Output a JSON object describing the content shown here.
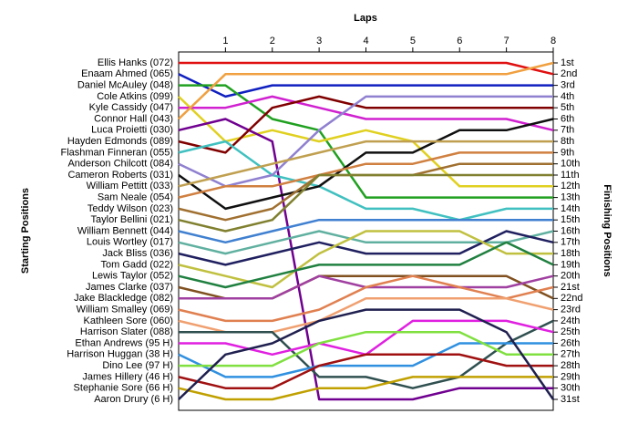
{
  "chart_data": {
    "type": "line",
    "title": "Laps",
    "ylabel": "Starting Positions",
    "y2label": "Finishing Positions",
    "x": [
      0,
      1,
      2,
      3,
      4,
      5,
      6,
      7,
      8
    ],
    "xlim": [
      0,
      8
    ],
    "xticks": [
      1,
      2,
      3,
      4,
      5,
      6,
      7,
      8
    ],
    "ylim": [
      1,
      31
    ],
    "y_inverted": true,
    "y2ticks": [
      {
        "value": 1,
        "label": "1st"
      },
      {
        "value": 2,
        "label": "2nd"
      },
      {
        "value": 3,
        "label": "3rd"
      },
      {
        "value": 4,
        "label": "4th"
      },
      {
        "value": 5,
        "label": "5th"
      },
      {
        "value": 6,
        "label": "6th"
      },
      {
        "value": 7,
        "label": "7th"
      },
      {
        "value": 8,
        "label": "8th"
      },
      {
        "value": 9,
        "label": "9th"
      },
      {
        "value": 10,
        "label": "10th"
      },
      {
        "value": 11,
        "label": "11th"
      },
      {
        "value": 12,
        "label": "12th"
      },
      {
        "value": 13,
        "label": "13th"
      },
      {
        "value": 14,
        "label": "14th"
      },
      {
        "value": 15,
        "label": "15th"
      },
      {
        "value": 16,
        "label": "16th"
      },
      {
        "value": 17,
        "label": "17th"
      },
      {
        "value": 18,
        "label": "18th"
      },
      {
        "value": 19,
        "label": "19th"
      },
      {
        "value": 20,
        "label": "20th"
      },
      {
        "value": 21,
        "label": "21st"
      },
      {
        "value": 22,
        "label": "22nd"
      },
      {
        "value": 23,
        "label": "23rd"
      },
      {
        "value": 24,
        "label": "24th"
      },
      {
        "value": 25,
        "label": "25th"
      },
      {
        "value": 26,
        "label": "26th"
      },
      {
        "value": 27,
        "label": "27th"
      },
      {
        "value": 28,
        "label": "28th"
      },
      {
        "value": 29,
        "label": "29th"
      },
      {
        "value": 30,
        "label": "30th"
      },
      {
        "value": 31,
        "label": "31st"
      }
    ],
    "series": [
      {
        "name": "Ellis Hanks (072)",
        "color": "#e01010",
        "values": [
          1,
          1,
          1,
          1,
          1,
          1,
          1,
          1,
          2
        ]
      },
      {
        "name": "Enaam Ahmed (065)",
        "color": "#1020c0",
        "values": [
          2,
          4,
          3,
          3,
          3,
          3,
          3,
          3,
          3
        ]
      },
      {
        "name": "Daniel McAuley (048)",
        "color": "#20a020",
        "values": [
          3,
          3,
          6,
          7,
          13,
          13,
          13,
          13,
          13
        ]
      },
      {
        "name": "Cole Atkins (099)",
        "color": "#e0d020",
        "values": [
          4,
          8,
          7,
          8,
          7,
          8,
          12,
          12,
          12
        ]
      },
      {
        "name": "Kyle Cassidy (047)",
        "color": "#d020d0",
        "values": [
          5,
          5,
          4,
          5,
          6,
          6,
          6,
          6,
          7
        ]
      },
      {
        "name": "Connor Hall (043)",
        "color": "#f0a040",
        "values": [
          6,
          2,
          2,
          2,
          2,
          2,
          2,
          2,
          1
        ]
      },
      {
        "name": "Luca Proietti (030)",
        "color": "#700090",
        "values": [
          7,
          6,
          8,
          31,
          31,
          31,
          30,
          30,
          30
        ]
      },
      {
        "name": "Hayden Edmonds (089)",
        "color": "#800000",
        "values": [
          8,
          9,
          5,
          4,
          5,
          5,
          5,
          5,
          5
        ]
      },
      {
        "name": "Flashman Finneran (055)",
        "color": "#40c0c0",
        "values": [
          9,
          8,
          11,
          12,
          14,
          14,
          15,
          14,
          14
        ]
      },
      {
        "name": "Anderson Chilcott (084)",
        "color": "#9080d0",
        "values": [
          10,
          12,
          11,
          7,
          4,
          4,
          4,
          4,
          4
        ]
      },
      {
        "name": "Cameron Roberts (031)",
        "color": "#101010",
        "values": [
          11,
          14,
          13,
          12,
          9,
          9,
          7,
          7,
          6
        ]
      },
      {
        "name": "William Pettitt (033)",
        "color": "#c0a050",
        "values": [
          12,
          11,
          10,
          9,
          8,
          8,
          8,
          8,
          8
        ]
      },
      {
        "name": "Sam Neale (054)",
        "color": "#d08040",
        "values": [
          13,
          12,
          12,
          11,
          10,
          10,
          9,
          9,
          9
        ]
      },
      {
        "name": "Teddy Wilson (023)",
        "color": "#a07030",
        "values": [
          14,
          15,
          14,
          11,
          11,
          11,
          10,
          10,
          10
        ]
      },
      {
        "name": "Taylor Bellini (021)",
        "color": "#808030",
        "values": [
          15,
          16,
          15,
          11,
          11,
          11,
          11,
          11,
          11
        ]
      },
      {
        "name": "William Bennett (044)",
        "color": "#4080d0",
        "values": [
          16,
          17,
          16,
          15,
          15,
          15,
          15,
          15,
          15
        ]
      },
      {
        "name": "Louis Wortley (017)",
        "color": "#60b0a0",
        "values": [
          17,
          18,
          17,
          16,
          17,
          17,
          17,
          17,
          16
        ]
      },
      {
        "name": "Jack Bliss (036)",
        "color": "#202060",
        "values": [
          18,
          19,
          18,
          17,
          18,
          18,
          18,
          16,
          17
        ]
      },
      {
        "name": "Tom Gadd (022)",
        "color": "#c0c040",
        "values": [
          19,
          20,
          21,
          18,
          16,
          16,
          16,
          18,
          18
        ]
      },
      {
        "name": "Lewis Taylor (052)",
        "color": "#208040",
        "values": [
          20,
          21,
          20,
          19,
          19,
          19,
          19,
          17,
          19
        ]
      },
      {
        "name": "James Clarke (037)",
        "color": "#805020",
        "values": [
          21,
          22,
          22,
          20,
          20,
          20,
          20,
          20,
          22
        ]
      },
      {
        "name": "Jake Blackledge (082)",
        "color": "#a040a0",
        "values": [
          22,
          22,
          22,
          20,
          21,
          21,
          21,
          21,
          20
        ]
      },
      {
        "name": "William Smalley (069)",
        "color": "#e08050",
        "values": [
          23,
          24,
          24,
          23,
          21,
          20,
          21,
          22,
          21
        ]
      },
      {
        "name": "Kathleen Sore (060)",
        "color": "#f0a070",
        "values": [
          24,
          25,
          25,
          24,
          22,
          22,
          22,
          22,
          23
        ]
      },
      {
        "name": "Harrison Slater (088)",
        "color": "#305050",
        "values": [
          25,
          25,
          25,
          29,
          29,
          30,
          29,
          26,
          24
        ]
      },
      {
        "name": "Ethan Andrews (95 H)",
        "color": "#e020e0",
        "values": [
          26,
          26,
          27,
          26,
          27,
          24,
          24,
          24,
          25
        ]
      },
      {
        "name": "Harrison Huggan (38 H)",
        "color": "#3090e0",
        "values": [
          27,
          29,
          29,
          28,
          28,
          28,
          26,
          26,
          26
        ]
      },
      {
        "name": "Dino Lee (97 H)",
        "color": "#80e040",
        "values": [
          28,
          28,
          28,
          26,
          25,
          25,
          25,
          27,
          27
        ]
      },
      {
        "name": "James Hillery (46 H)",
        "color": "#a01010",
        "values": [
          29,
          30,
          30,
          28,
          27,
          27,
          27,
          28,
          28
        ]
      },
      {
        "name": "Stephanie Sore (66 H)",
        "color": "#c0a000",
        "values": [
          30,
          31,
          31,
          30,
          30,
          29,
          29,
          29,
          29
        ]
      },
      {
        "name": "Aaron Drury (6 H)",
        "color": "#202050",
        "values": [
          31,
          27,
          26,
          24,
          23,
          23,
          23,
          25,
          31
        ]
      }
    ]
  }
}
